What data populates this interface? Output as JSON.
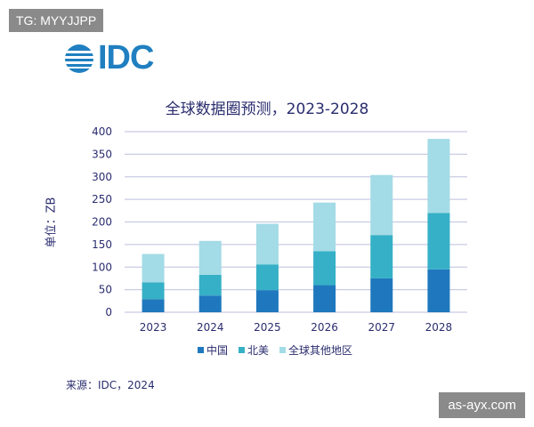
{
  "watermark_top": "TG: MYYJJPP",
  "watermark_bottom": "as-ayx.com",
  "logo_text": "IDC",
  "source": "来源：IDC，2024",
  "colors": {
    "中国": "#1f78bd",
    "北美": "#36b0c6",
    "全球其他地区": "#a3dbe6",
    "axis_text": "#2a2d6e"
  },
  "chart_data": {
    "type": "bar",
    "stacked": true,
    "title": "全球数据圈预测，2023-2028",
    "ylabel": "单位：ZB",
    "xlabel": "",
    "categories": [
      "2023",
      "2024",
      "2025",
      "2026",
      "2027",
      "2028"
    ],
    "ylim": [
      0,
      400
    ],
    "yticks": [
      0,
      50,
      100,
      150,
      200,
      250,
      300,
      350,
      400
    ],
    "grid": true,
    "legend_position": "bottom",
    "series": [
      {
        "name": "中国",
        "values": [
          29,
          37,
          49,
          60,
          75,
          95
        ]
      },
      {
        "name": "北美",
        "values": [
          37,
          46,
          57,
          75,
          96,
          125
        ]
      },
      {
        "name": "全球其他地区",
        "values": [
          63,
          75,
          90,
          108,
          133,
          164
        ]
      }
    ]
  }
}
